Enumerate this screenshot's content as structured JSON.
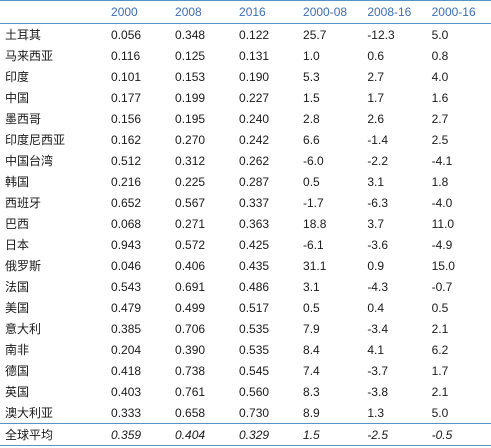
{
  "table": {
    "headers": [
      "",
      "2000",
      "2008",
      "2016",
      "2000-08",
      "2008-16",
      "2000-16"
    ],
    "rows": [
      [
        "土耳其",
        "0.056",
        "0.348",
        "0.122",
        "25.7",
        "-12.3",
        "5.0"
      ],
      [
        "马来西亚",
        "0.116",
        "0.125",
        "0.131",
        "1.0",
        "0.6",
        "0.8"
      ],
      [
        "印度",
        "0.101",
        "0.153",
        "0.190",
        "5.3",
        "2.7",
        "4.0"
      ],
      [
        "中国",
        "0.177",
        "0.199",
        "0.227",
        "1.5",
        "1.7",
        "1.6"
      ],
      [
        "墨西哥",
        "0.156",
        "0.195",
        "0.240",
        "2.8",
        "2.6",
        "2.7"
      ],
      [
        "印度尼西亚",
        "0.162",
        "0.270",
        "0.242",
        "6.6",
        "-1.4",
        "2.5"
      ],
      [
        "中国台湾",
        "0.512",
        "0.312",
        "0.262",
        "-6.0",
        "-2.2",
        "-4.1"
      ],
      [
        "韩国",
        "0.216",
        "0.225",
        "0.287",
        "0.5",
        "3.1",
        "1.8"
      ],
      [
        "西班牙",
        "0.652",
        "0.567",
        "0.337",
        "-1.7",
        "-6.3",
        "-4.0"
      ],
      [
        "巴西",
        "0.068",
        "0.271",
        "0.363",
        "18.8",
        "3.7",
        "11.0"
      ],
      [
        "日本",
        "0.943",
        "0.572",
        "0.425",
        "-6.1",
        "-3.6",
        "-4.9"
      ],
      [
        "俄罗斯",
        "0.046",
        "0.406",
        "0.435",
        "31.1",
        "0.9",
        "15.0"
      ],
      [
        "法国",
        "0.543",
        "0.691",
        "0.486",
        "3.1",
        "-4.3",
        "-0.7"
      ],
      [
        "美国",
        "0.479",
        "0.499",
        "0.517",
        "0.5",
        "0.4",
        "0.5"
      ],
      [
        "意大利",
        "0.385",
        "0.706",
        "0.535",
        "7.9",
        "-3.4",
        "2.1"
      ],
      [
        "南非",
        "0.204",
        "0.390",
        "0.535",
        "8.4",
        "4.1",
        "6.2"
      ],
      [
        "德国",
        "0.418",
        "0.738",
        "0.545",
        "7.4",
        "-3.7",
        "1.7"
      ],
      [
        "英国",
        "0.403",
        "0.761",
        "0.560",
        "8.3",
        "-3.8",
        "2.1"
      ],
      [
        "澳大利亚",
        "0.333",
        "0.658",
        "0.730",
        "8.9",
        "1.3",
        "5.0"
      ],
      [
        "全球平均",
        "0.359",
        "0.404",
        "0.329",
        "1.5",
        "-2.5",
        "-0.5"
      ]
    ]
  },
  "colors": {
    "header_text": "#3b6fb5",
    "rule_lines": "#5b93c8",
    "body_text": "#1a1a1a"
  }
}
